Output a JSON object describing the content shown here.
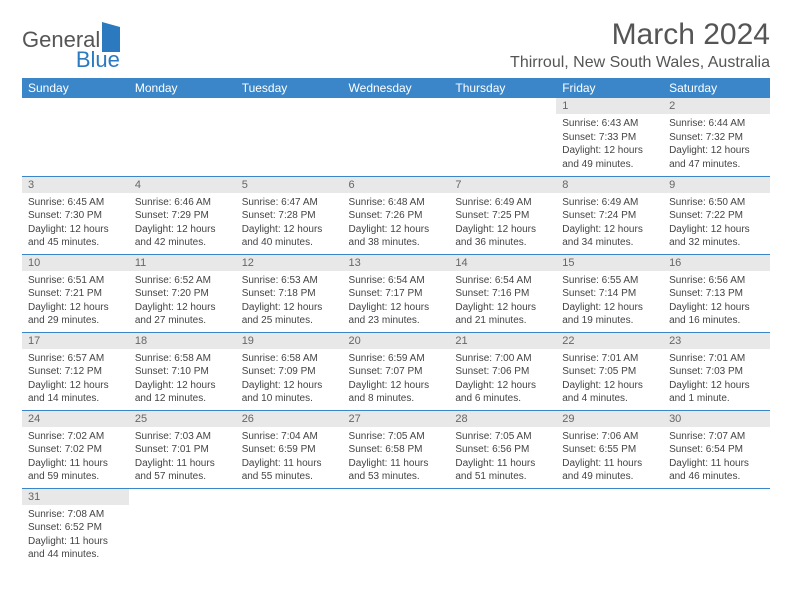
{
  "logo": {
    "general": "General",
    "blue": "Blue"
  },
  "title": "March 2024",
  "location": "Thirroul, New South Wales, Australia",
  "colors": {
    "header_bg": "#3a86c8",
    "header_text": "#ffffff",
    "daynum_bg": "#e8e8e8",
    "row_border": "#3a86c8",
    "text": "#444444",
    "title_text": "#555555"
  },
  "day_headers": [
    "Sunday",
    "Monday",
    "Tuesday",
    "Wednesday",
    "Thursday",
    "Friday",
    "Saturday"
  ],
  "weeks": [
    [
      {
        "n": "",
        "l": [
          "",
          "",
          "",
          ""
        ]
      },
      {
        "n": "",
        "l": [
          "",
          "",
          "",
          ""
        ]
      },
      {
        "n": "",
        "l": [
          "",
          "",
          "",
          ""
        ]
      },
      {
        "n": "",
        "l": [
          "",
          "",
          "",
          ""
        ]
      },
      {
        "n": "",
        "l": [
          "",
          "",
          "",
          ""
        ]
      },
      {
        "n": "1",
        "l": [
          "Sunrise: 6:43 AM",
          "Sunset: 7:33 PM",
          "Daylight: 12 hours",
          "and 49 minutes."
        ]
      },
      {
        "n": "2",
        "l": [
          "Sunrise: 6:44 AM",
          "Sunset: 7:32 PM",
          "Daylight: 12 hours",
          "and 47 minutes."
        ]
      }
    ],
    [
      {
        "n": "3",
        "l": [
          "Sunrise: 6:45 AM",
          "Sunset: 7:30 PM",
          "Daylight: 12 hours",
          "and 45 minutes."
        ]
      },
      {
        "n": "4",
        "l": [
          "Sunrise: 6:46 AM",
          "Sunset: 7:29 PM",
          "Daylight: 12 hours",
          "and 42 minutes."
        ]
      },
      {
        "n": "5",
        "l": [
          "Sunrise: 6:47 AM",
          "Sunset: 7:28 PM",
          "Daylight: 12 hours",
          "and 40 minutes."
        ]
      },
      {
        "n": "6",
        "l": [
          "Sunrise: 6:48 AM",
          "Sunset: 7:26 PM",
          "Daylight: 12 hours",
          "and 38 minutes."
        ]
      },
      {
        "n": "7",
        "l": [
          "Sunrise: 6:49 AM",
          "Sunset: 7:25 PM",
          "Daylight: 12 hours",
          "and 36 minutes."
        ]
      },
      {
        "n": "8",
        "l": [
          "Sunrise: 6:49 AM",
          "Sunset: 7:24 PM",
          "Daylight: 12 hours",
          "and 34 minutes."
        ]
      },
      {
        "n": "9",
        "l": [
          "Sunrise: 6:50 AM",
          "Sunset: 7:22 PM",
          "Daylight: 12 hours",
          "and 32 minutes."
        ]
      }
    ],
    [
      {
        "n": "10",
        "l": [
          "Sunrise: 6:51 AM",
          "Sunset: 7:21 PM",
          "Daylight: 12 hours",
          "and 29 minutes."
        ]
      },
      {
        "n": "11",
        "l": [
          "Sunrise: 6:52 AM",
          "Sunset: 7:20 PM",
          "Daylight: 12 hours",
          "and 27 minutes."
        ]
      },
      {
        "n": "12",
        "l": [
          "Sunrise: 6:53 AM",
          "Sunset: 7:18 PM",
          "Daylight: 12 hours",
          "and 25 minutes."
        ]
      },
      {
        "n": "13",
        "l": [
          "Sunrise: 6:54 AM",
          "Sunset: 7:17 PM",
          "Daylight: 12 hours",
          "and 23 minutes."
        ]
      },
      {
        "n": "14",
        "l": [
          "Sunrise: 6:54 AM",
          "Sunset: 7:16 PM",
          "Daylight: 12 hours",
          "and 21 minutes."
        ]
      },
      {
        "n": "15",
        "l": [
          "Sunrise: 6:55 AM",
          "Sunset: 7:14 PM",
          "Daylight: 12 hours",
          "and 19 minutes."
        ]
      },
      {
        "n": "16",
        "l": [
          "Sunrise: 6:56 AM",
          "Sunset: 7:13 PM",
          "Daylight: 12 hours",
          "and 16 minutes."
        ]
      }
    ],
    [
      {
        "n": "17",
        "l": [
          "Sunrise: 6:57 AM",
          "Sunset: 7:12 PM",
          "Daylight: 12 hours",
          "and 14 minutes."
        ]
      },
      {
        "n": "18",
        "l": [
          "Sunrise: 6:58 AM",
          "Sunset: 7:10 PM",
          "Daylight: 12 hours",
          "and 12 minutes."
        ]
      },
      {
        "n": "19",
        "l": [
          "Sunrise: 6:58 AM",
          "Sunset: 7:09 PM",
          "Daylight: 12 hours",
          "and 10 minutes."
        ]
      },
      {
        "n": "20",
        "l": [
          "Sunrise: 6:59 AM",
          "Sunset: 7:07 PM",
          "Daylight: 12 hours",
          "and 8 minutes."
        ]
      },
      {
        "n": "21",
        "l": [
          "Sunrise: 7:00 AM",
          "Sunset: 7:06 PM",
          "Daylight: 12 hours",
          "and 6 minutes."
        ]
      },
      {
        "n": "22",
        "l": [
          "Sunrise: 7:01 AM",
          "Sunset: 7:05 PM",
          "Daylight: 12 hours",
          "and 4 minutes."
        ]
      },
      {
        "n": "23",
        "l": [
          "Sunrise: 7:01 AM",
          "Sunset: 7:03 PM",
          "Daylight: 12 hours",
          "and 1 minute."
        ]
      }
    ],
    [
      {
        "n": "24",
        "l": [
          "Sunrise: 7:02 AM",
          "Sunset: 7:02 PM",
          "Daylight: 11 hours",
          "and 59 minutes."
        ]
      },
      {
        "n": "25",
        "l": [
          "Sunrise: 7:03 AM",
          "Sunset: 7:01 PM",
          "Daylight: 11 hours",
          "and 57 minutes."
        ]
      },
      {
        "n": "26",
        "l": [
          "Sunrise: 7:04 AM",
          "Sunset: 6:59 PM",
          "Daylight: 11 hours",
          "and 55 minutes."
        ]
      },
      {
        "n": "27",
        "l": [
          "Sunrise: 7:05 AM",
          "Sunset: 6:58 PM",
          "Daylight: 11 hours",
          "and 53 minutes."
        ]
      },
      {
        "n": "28",
        "l": [
          "Sunrise: 7:05 AM",
          "Sunset: 6:56 PM",
          "Daylight: 11 hours",
          "and 51 minutes."
        ]
      },
      {
        "n": "29",
        "l": [
          "Sunrise: 7:06 AM",
          "Sunset: 6:55 PM",
          "Daylight: 11 hours",
          "and 49 minutes."
        ]
      },
      {
        "n": "30",
        "l": [
          "Sunrise: 7:07 AM",
          "Sunset: 6:54 PM",
          "Daylight: 11 hours",
          "and 46 minutes."
        ]
      }
    ],
    [
      {
        "n": "31",
        "l": [
          "Sunrise: 7:08 AM",
          "Sunset: 6:52 PM",
          "Daylight: 11 hours",
          "and 44 minutes."
        ]
      },
      {
        "n": "",
        "l": [
          "",
          "",
          "",
          ""
        ]
      },
      {
        "n": "",
        "l": [
          "",
          "",
          "",
          ""
        ]
      },
      {
        "n": "",
        "l": [
          "",
          "",
          "",
          ""
        ]
      },
      {
        "n": "",
        "l": [
          "",
          "",
          "",
          ""
        ]
      },
      {
        "n": "",
        "l": [
          "",
          "",
          "",
          ""
        ]
      },
      {
        "n": "",
        "l": [
          "",
          "",
          "",
          ""
        ]
      }
    ]
  ]
}
